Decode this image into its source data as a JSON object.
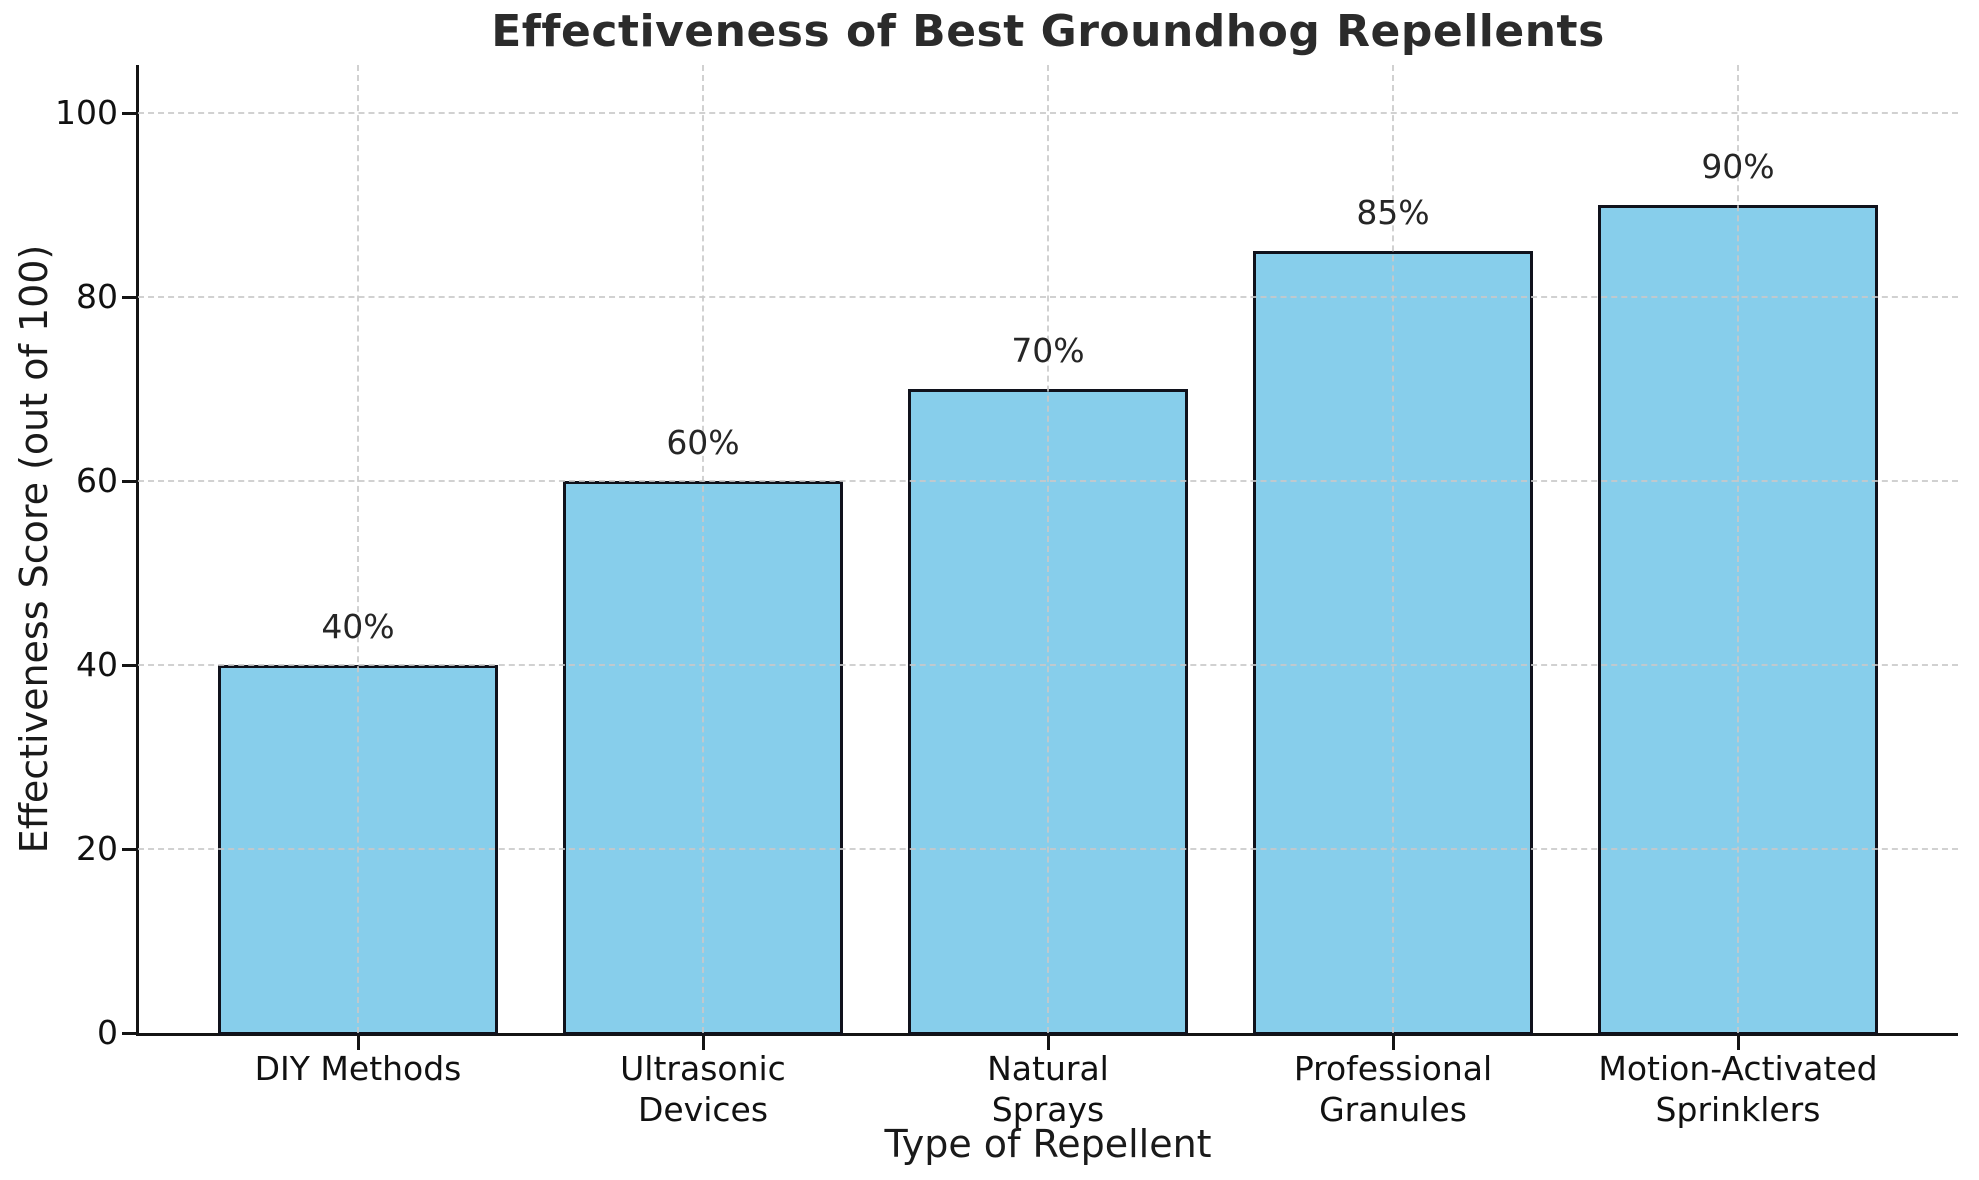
{
  "chart_data": {
    "type": "bar",
    "title": "Effectiveness of Best Groundhog Repellents",
    "xlabel": "Type of Repellent",
    "ylabel": "Effectiveness Score (out of 100)",
    "categories": [
      "DIY Methods",
      "Ultrasonic\nDevices",
      "Natural\nSprays",
      "Professional\nGranules",
      "Motion-Activated\nSprinklers"
    ],
    "values": [
      40,
      60,
      70,
      85,
      90
    ],
    "value_labels": [
      "40%",
      "60%",
      "70%",
      "85%",
      "90%"
    ],
    "yticks": [
      0,
      20,
      40,
      60,
      80,
      100
    ],
    "ylim": [
      0,
      105
    ],
    "grid": "dashed, both axes, drawn above bars",
    "legend": "none",
    "colors": {
      "bar_fill": "#87CEEB",
      "bar_edge": "#10121C",
      "grid": "#C9C9C9",
      "axis_spine": "#141414",
      "tick_text": "#111111",
      "title_text": "#2B2B2B",
      "label_text": "#1A1A1A",
      "background": "#FFFFFF"
    }
  }
}
